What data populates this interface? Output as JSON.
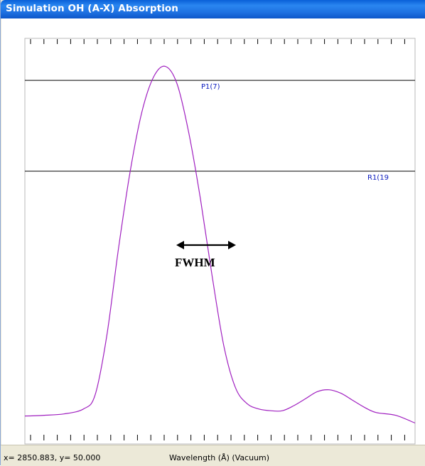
{
  "window": {
    "title": "Simulation   OH (A-X)  Absorption"
  },
  "status": {
    "coords": "x= 2850.883, y=  50.000",
    "axis_label": "Wavelength (Å) (Vacuum)"
  },
  "annotations": {
    "fwhm_label": "FWHM"
  },
  "colors": {
    "spectrum": "#a020c0",
    "line_label": "#1020c0",
    "titlebar": "#1d6fe0"
  },
  "chart_data": {
    "type": "line",
    "xlabel": "Wavelength (Å) (Vacuum)",
    "series": [
      {
        "name": "",
        "x": [
          0,
          5,
          10,
          15,
          18,
          21,
          24,
          27,
          30,
          33,
          36,
          39,
          42,
          45,
          48,
          51,
          54,
          57,
          60,
          63,
          66,
          69,
          72,
          75,
          78,
          81,
          84,
          87,
          90,
          95,
          100
        ],
        "y": [
          0.0,
          0.002,
          0.006,
          0.02,
          0.06,
          0.23,
          0.48,
          0.7,
          0.87,
          0.97,
          1.0,
          0.95,
          0.81,
          0.62,
          0.4,
          0.2,
          0.08,
          0.035,
          0.02,
          0.015,
          0.015,
          0.03,
          0.05,
          0.07,
          0.075,
          0.065,
          0.045,
          0.025,
          0.01,
          0.002,
          -0.02
        ]
      }
    ],
    "ylim": [
      -0.08,
      1.08
    ],
    "xlim": [
      0,
      100
    ],
    "grid": false,
    "reference_lines": [
      {
        "label": "P1(7)",
        "y": 0.96
      },
      {
        "label": "R1(19",
        "y": 0.7
      }
    ]
  }
}
